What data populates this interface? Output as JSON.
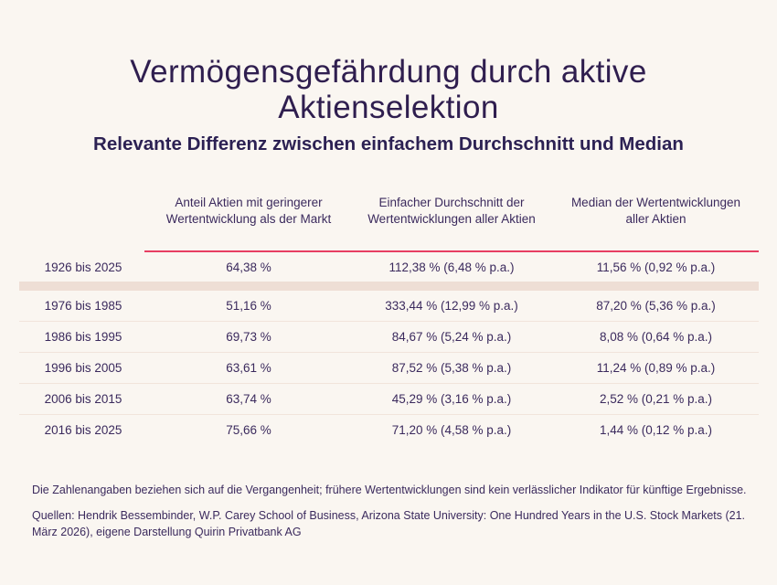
{
  "title": "Vermögensgefährdung durch aktive Aktienselektion",
  "subtitle": "Relevante Differenz zwischen einfachem Durchschnitt und Median",
  "table": {
    "columns": [
      "Anteil Aktien mit geringerer Wertentwicklung als der Markt",
      "Einfacher Durchschnitt der Wertentwicklungen aller Aktien",
      "Median der Wertentwicklungen aller Aktien"
    ],
    "rows": [
      {
        "period": "1926 bis 2025",
        "share": "64,38 %",
        "average": "112,38 % (6,48 % p.a.)",
        "median": "11,56 % (0,92 % p.a.)"
      },
      {
        "period": "1976 bis 1985",
        "share": "51,16 %",
        "average": "333,44 % (12,99 % p.a.)",
        "median": "87,20 % (5,36 % p.a.)"
      },
      {
        "period": "1986 bis 1995",
        "share": "69,73 %",
        "average": "84,67 % (5,24 % p.a.)",
        "median": "8,08 % (0,64 % p.a.)"
      },
      {
        "period": "1996 bis 2005",
        "share": "63,61 %",
        "average": "87,52 % (5,38 % p.a.)",
        "median": "11,24 % (0,89 % p.a.)"
      },
      {
        "period": "2006 bis 2015",
        "share": "63,74 %",
        "average": "45,29 % (3,16 % p.a.)",
        "median": "2,52 % (0,21 % p.a.)"
      },
      {
        "period": "2016 bis 2025",
        "share": "75,66 %",
        "average": "71,20 % (4,58 % p.a.)",
        "median": "1,44 % (0,12 % p.a.)"
      }
    ]
  },
  "footnotes": {
    "disclaimer": "Die Zahlenangaben beziehen sich auf die Vergangenheit; frühere Wertentwicklungen sind kein verlässlicher Indikator für künftige Ergebnisse.",
    "sources": "Quellen: Hendrik Bessembinder, W.P. Carey School of Business, Arizona State University: One Hundred Years in the U.S. Stock Markets (21. März 2026), eigene Darstellung Quirin Privatbank AG"
  },
  "colors": {
    "background": "#faf6f1",
    "title_text": "#2f1e4f",
    "body_text": "#3b2a5d",
    "accent_line": "#e73e62",
    "highlight_band": "#eeded5",
    "row_separator": "#f1e4db"
  },
  "chart_data": {
    "type": "table",
    "title": "Vermögensgefährdung durch aktive Aktienselektion",
    "subtitle": "Relevante Differenz zwischen einfachem Durchschnitt und Median",
    "categories": [
      "1926 bis 2025",
      "1976 bis 1985",
      "1986 bis 1995",
      "1996 bis 2005",
      "2006 bis 2015",
      "2016 bis 2025"
    ],
    "series": [
      {
        "name": "Anteil Aktien mit geringerer Wertentwicklung als der Markt (%)",
        "values": [
          64.38,
          51.16,
          69.73,
          63.61,
          63.74,
          75.66
        ]
      },
      {
        "name": "Einfacher Durchschnitt der Wertentwicklungen aller Aktien (%)",
        "values": [
          112.38,
          333.44,
          84.67,
          87.52,
          45.29,
          71.2
        ]
      },
      {
        "name": "Einfacher Durchschnitt p.a. (%)",
        "values": [
          6.48,
          12.99,
          5.24,
          5.38,
          3.16,
          4.58
        ]
      },
      {
        "name": "Median der Wertentwicklungen aller Aktien (%)",
        "values": [
          11.56,
          87.2,
          8.08,
          11.24,
          2.52,
          1.44
        ]
      },
      {
        "name": "Median p.a. (%)",
        "values": [
          0.92,
          5.36,
          0.64,
          0.89,
          0.21,
          0.12
        ]
      }
    ]
  }
}
